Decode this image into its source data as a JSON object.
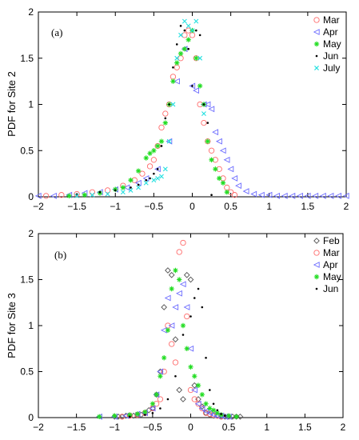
{
  "chart_data": [
    {
      "type": "scatter",
      "panel_label": "(a)",
      "ylabel": "PDF for Site 2",
      "xlabel": "",
      "xlim": [
        -2,
        2
      ],
      "ylim": [
        0,
        2
      ],
      "xticks": [
        "−2",
        "−1.5",
        "−1",
        "−0.5",
        "0",
        "0.5",
        "1",
        "1.5",
        "2"
      ],
      "yticks": [
        "0",
        "0.5",
        "1",
        "1.5",
        "2"
      ],
      "grid": false,
      "legend_position": "top-right",
      "series": [
        {
          "name": "Mar",
          "marker": "circle",
          "color": "#ff6b6b",
          "x": [
            -1.9,
            -1.7,
            -1.5,
            -1.3,
            -1.1,
            -0.9,
            -0.75,
            -0.65,
            -0.55,
            -0.5,
            -0.45,
            -0.4,
            -0.35,
            -0.3,
            -0.25,
            -0.2,
            -0.15,
            -0.1,
            -0.05,
            0.0,
            0.05,
            0.1,
            0.15,
            0.2,
            0.25,
            0.3,
            0.35,
            0.4,
            0.45,
            0.5,
            0.55
          ],
          "y": [
            0.01,
            0.02,
            0.03,
            0.05,
            0.07,
            0.12,
            0.18,
            0.25,
            0.33,
            0.4,
            0.55,
            0.75,
            0.9,
            1.0,
            1.3,
            1.4,
            1.5,
            1.75,
            1.8,
            1.75,
            1.5,
            1.0,
            0.8,
            0.6,
            0.5,
            0.4,
            0.3,
            0.2,
            0.1,
            0.05,
            0.02
          ]
        },
        {
          "name": "Apr",
          "marker": "triangle-left",
          "color": "#6b6bff",
          "x": [
            -2.0,
            -1.8,
            -1.6,
            -1.4,
            -1.2,
            -1.0,
            -0.85,
            -0.7,
            -0.6,
            -0.45,
            -0.3,
            -0.2,
            -0.1,
            0.0,
            0.05,
            0.15,
            0.2,
            0.25,
            0.3,
            0.35,
            0.4,
            0.45,
            0.5,
            0.55,
            0.6,
            0.7,
            0.8,
            0.9,
            1.0,
            1.1,
            1.2,
            1.3,
            1.4,
            1.5,
            1.6,
            1.7,
            1.8,
            1.9,
            2.0
          ],
          "y": [
            0.01,
            0.01,
            0.02,
            0.04,
            0.05,
            0.08,
            0.1,
            0.15,
            0.2,
            0.3,
            0.6,
            1.25,
            1.6,
            1.2,
            1.15,
            1.0,
            1.0,
            0.95,
            0.7,
            0.6,
            0.5,
            0.4,
            0.3,
            0.2,
            0.12,
            0.06,
            0.03,
            0.02,
            0.02,
            0.01,
            0.01,
            0.01,
            0.01,
            0.01,
            0.01,
            0.01,
            0.01,
            0.01,
            0.01
          ]
        },
        {
          "name": "May",
          "marker": "star",
          "color": "#22dd22",
          "x": [
            -1.6,
            -1.4,
            -1.2,
            -1.0,
            -0.9,
            -0.8,
            -0.7,
            -0.6,
            -0.55,
            -0.5,
            -0.45,
            -0.4,
            -0.35,
            -0.3,
            -0.25,
            -0.2,
            -0.15,
            -0.1,
            -0.05,
            0.0,
            0.05,
            0.1,
            0.15,
            0.2,
            0.25,
            0.3,
            0.35,
            0.4,
            0.45
          ],
          "y": [
            0.01,
            0.02,
            0.04,
            0.08,
            0.1,
            0.18,
            0.28,
            0.42,
            0.47,
            0.5,
            0.55,
            0.6,
            0.8,
            1.0,
            1.25,
            1.45,
            1.55,
            1.6,
            1.7,
            1.8,
            1.5,
            1.2,
            1.0,
            0.6,
            0.4,
            0.3,
            0.2,
            0.15,
            0.05
          ]
        },
        {
          "name": "Jun",
          "marker": "dot",
          "color": "#000000",
          "x": [
            -1.5,
            -1.2,
            -1.0,
            -0.8,
            -0.7,
            -0.6,
            -0.55,
            -0.5,
            -0.45,
            -0.4,
            -0.35,
            -0.3,
            -0.25,
            -0.2,
            -0.15,
            -0.1,
            -0.05,
            0.0,
            0.05,
            0.1,
            0.15,
            0.2,
            0.25
          ],
          "y": [
            0.02,
            0.05,
            0.07,
            0.1,
            0.13,
            0.18,
            0.2,
            0.25,
            0.3,
            0.55,
            0.85,
            1.0,
            1.4,
            1.65,
            1.85,
            1.8,
            1.6,
            1.2,
            1.8,
            1.75,
            1.0,
            0.8,
            0.02
          ]
        },
        {
          "name": "July",
          "marker": "x",
          "color": "#22e0e0",
          "x": [
            -1.5,
            -1.3,
            -1.1,
            -0.9,
            -0.8,
            -0.7,
            -0.6,
            -0.5,
            -0.45,
            -0.4,
            -0.35,
            -0.3,
            -0.25,
            -0.2,
            -0.15,
            -0.1,
            -0.05,
            0.0,
            0.05,
            0.1,
            0.15
          ],
          "y": [
            0.01,
            0.02,
            0.03,
            0.05,
            0.07,
            0.1,
            0.15,
            0.18,
            0.2,
            0.22,
            0.3,
            0.6,
            1.0,
            1.5,
            1.75,
            1.9,
            1.85,
            1.8,
            1.9,
            1.5,
            0.9
          ]
        }
      ]
    },
    {
      "type": "scatter",
      "panel_label": "(b)",
      "ylabel": "PDF for Site 3",
      "xlabel": "",
      "xlim": [
        -2,
        2
      ],
      "ylim": [
        0,
        2
      ],
      "xticks": [
        "−2",
        "−1.5",
        "−1",
        "−0.5",
        "0",
        "0.5",
        "1",
        "1.5",
        "2"
      ],
      "yticks": [
        "0",
        "0.5",
        "1",
        "1.5",
        "2"
      ],
      "grid": false,
      "legend_position": "top-right",
      "series": [
        {
          "name": "Feb",
          "marker": "diamond",
          "color": "#555555",
          "x": [
            -1.0,
            -0.95,
            -0.9,
            -0.85,
            -0.8,
            -0.75,
            -0.7,
            -0.65,
            -0.6,
            -0.55,
            -0.5,
            -0.45,
            -0.4,
            -0.35,
            -0.3,
            -0.25,
            -0.2,
            -0.15,
            -0.1,
            -0.05,
            0.0,
            0.05,
            0.1,
            0.15,
            0.2,
            0.25,
            0.3,
            0.35,
            0.4,
            0.45,
            0.5,
            0.55,
            0.6,
            0.65
          ],
          "y": [
            0.01,
            0.01,
            0.01,
            0.02,
            0.02,
            0.02,
            0.03,
            0.03,
            0.05,
            0.08,
            0.1,
            0.25,
            0.5,
            1.2,
            1.6,
            1.55,
            0.85,
            0.3,
            0.2,
            1.55,
            1.5,
            0.35,
            0.2,
            0.12,
            0.05,
            0.03,
            0.02,
            0.02,
            0.01,
            0.01,
            0.01,
            0.01,
            0.01,
            0.01
          ]
        },
        {
          "name": "Mar",
          "marker": "circle",
          "color": "#ff6b6b",
          "x": [
            -0.9,
            -0.8,
            -0.7,
            -0.6,
            -0.5,
            -0.45,
            -0.4,
            -0.35,
            -0.3,
            -0.25,
            -0.2,
            -0.15,
            -0.1,
            -0.05,
            0.0,
            0.05,
            0.1,
            0.15,
            0.2,
            0.25,
            0.3,
            0.35,
            0.4
          ],
          "y": [
            0.01,
            0.02,
            0.03,
            0.05,
            0.1,
            0.15,
            0.2,
            0.5,
            1.0,
            0.8,
            0.6,
            1.8,
            1.9,
            1.1,
            0.3,
            0.2,
            0.15,
            0.1,
            0.05,
            0.04,
            0.03,
            0.02,
            0.01
          ]
        },
        {
          "name": "Apr",
          "marker": "triangle-left",
          "color": "#6b6bff",
          "x": [
            -1.2,
            -1.0,
            -0.85,
            -0.7,
            -0.6,
            -0.5,
            -0.45,
            -0.4,
            -0.35,
            -0.3,
            -0.25,
            -0.2,
            -0.15,
            -0.1,
            -0.05,
            0.0,
            0.05,
            0.1,
            0.15,
            0.2,
            0.25,
            0.3,
            0.35,
            0.4,
            0.45,
            0.5
          ],
          "y": [
            0.01,
            0.01,
            0.02,
            0.04,
            0.05,
            0.1,
            0.25,
            0.5,
            0.95,
            1.3,
            1.0,
            1.2,
            1.35,
            1.45,
            1.2,
            0.75,
            0.3,
            0.15,
            0.1,
            0.07,
            0.05,
            0.03,
            0.02,
            0.02,
            0.01,
            0.01
          ]
        },
        {
          "name": "May",
          "marker": "star",
          "color": "#22dd22",
          "x": [
            -1.2,
            -1.0,
            -0.8,
            -0.7,
            -0.6,
            -0.5,
            -0.45,
            -0.4,
            -0.35,
            -0.3,
            -0.25,
            -0.2,
            -0.15,
            -0.1,
            -0.05,
            0.0,
            0.05,
            0.1,
            0.15,
            0.2,
            0.25,
            0.3,
            0.35,
            0.4,
            0.5,
            0.6
          ],
          "y": [
            0.01,
            0.02,
            0.03,
            0.04,
            0.06,
            0.15,
            0.25,
            0.45,
            0.65,
            0.95,
            1.4,
            1.6,
            1.5,
            1.0,
            0.75,
            0.55,
            0.45,
            0.35,
            0.25,
            0.15,
            0.1,
            0.08,
            0.05,
            0.03,
            0.02,
            0.01
          ]
        },
        {
          "name": "Jun",
          "marker": "dot",
          "color": "#000000",
          "x": [
            -0.8,
            -0.6,
            -0.5,
            -0.4,
            -0.3,
            -0.2,
            -0.1,
            0.0,
            0.05,
            0.1,
            0.15,
            0.2,
            0.25,
            0.3,
            0.35,
            0.4,
            0.45
          ],
          "y": [
            0.01,
            0.03,
            0.05,
            0.1,
            0.2,
            0.45,
            0.9,
            1.1,
            1.3,
            1.4,
            1.2,
            0.65,
            0.3,
            0.15,
            0.08,
            0.04,
            0.02
          ]
        }
      ]
    }
  ]
}
